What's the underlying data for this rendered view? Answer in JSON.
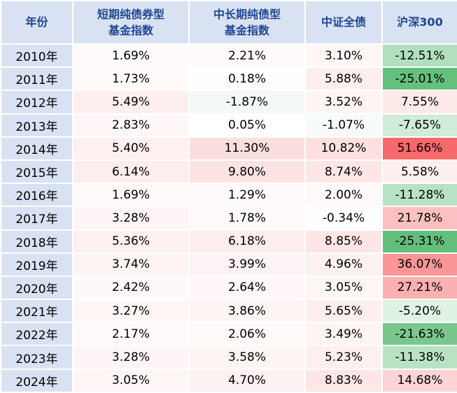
{
  "styles": {
    "header_bg": "#D9E2F3",
    "header_text_color": "#1F4690",
    "year_col_bg": "#D9E2F3",
    "cell_text_color": "#000000",
    "grid_color": "#FFFFFF"
  },
  "chart_data": {
    "type": "heatmap",
    "title": "",
    "unit": "%",
    "columns": [
      "年份",
      "短期纯债券型基金指数",
      "中长期纯债型基金指数",
      "中证全债",
      "沪深300"
    ],
    "header_lines": [
      [
        "年份"
      ],
      [
        "短期纯债券型",
        "基金指数"
      ],
      [
        "中长期纯债型",
        "基金指数"
      ],
      [
        "中证全债"
      ],
      [
        "沪深300"
      ]
    ],
    "categories": [
      "2010年",
      "2011年",
      "2012年",
      "2013年",
      "2014年",
      "2015年",
      "2016年",
      "2017年",
      "2018年",
      "2019年",
      "2020年",
      "2021年",
      "2022年",
      "2023年",
      "2024年"
    ],
    "series": [
      {
        "name": "短期纯债券型基金指数",
        "values": [
          1.69,
          1.73,
          5.49,
          2.83,
          5.4,
          6.14,
          1.69,
          3.28,
          5.36,
          3.74,
          2.42,
          3.27,
          2.17,
          3.28,
          3.05
        ]
      },
      {
        "name": "中长期纯债型基金指数",
        "values": [
          2.21,
          0.18,
          -1.87,
          0.05,
          11.3,
          9.8,
          1.29,
          1.78,
          6.18,
          3.99,
          2.64,
          3.86,
          2.06,
          3.58,
          4.7
        ]
      },
      {
        "name": "中证全债",
        "values": [
          3.1,
          5.88,
          3.52,
          -1.07,
          10.82,
          8.74,
          2.0,
          -0.34,
          8.85,
          4.96,
          3.05,
          5.65,
          3.49,
          5.23,
          8.83
        ]
      },
      {
        "name": "沪深300",
        "values": [
          -12.51,
          -25.01,
          7.55,
          -7.65,
          51.66,
          5.58,
          -11.28,
          21.78,
          -25.31,
          36.07,
          27.21,
          -5.2,
          -21.63,
          -11.38,
          14.68
        ]
      }
    ],
    "color_scale": {
      "negative_color": "#63BE7B",
      "zero_color": "#FFFFFF",
      "positive_color": "#F8696B",
      "domain_min": -25.31,
      "domain_max": 51.66
    }
  }
}
